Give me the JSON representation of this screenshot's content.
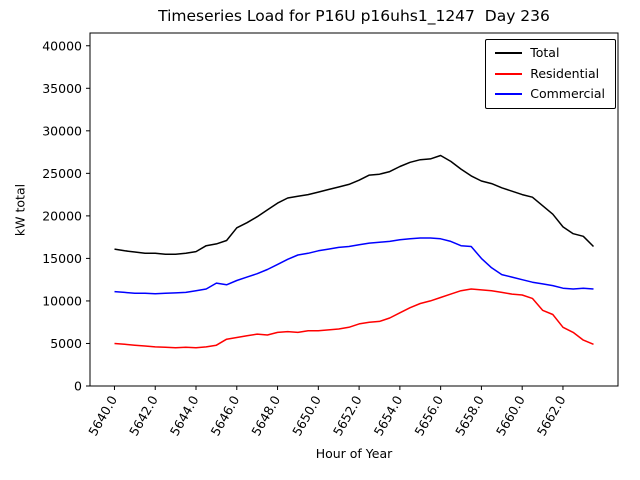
{
  "chart_data": {
    "type": "line",
    "title": "Timeseries Load for P16U p16uhs1_1247  Day 236",
    "xlabel": "Hour of Year",
    "ylabel": "kW total",
    "xlim": [
      5638.8,
      5664.7
    ],
    "ylim": [
      0,
      41500
    ],
    "grid": false,
    "legend_position": "upper right",
    "x_ticks": [
      5640,
      5642,
      5644,
      5646,
      5648,
      5650,
      5652,
      5654,
      5656,
      5658,
      5660,
      5662
    ],
    "x_tick_labels": [
      "5640.0",
      "5642.0",
      "5644.0",
      "5646.0",
      "5648.0",
      "5650.0",
      "5652.0",
      "5654.0",
      "5656.0",
      "5658.0",
      "5660.0",
      "5662.0"
    ],
    "y_ticks": [
      0,
      5000,
      10000,
      15000,
      20000,
      25000,
      30000,
      35000,
      40000
    ],
    "y_tick_labels": [
      "0",
      "5000",
      "10000",
      "15000",
      "20000",
      "25000",
      "30000",
      "35000",
      "40000"
    ],
    "x": [
      5640.0,
      5640.5,
      5641.0,
      5641.5,
      5642.0,
      5642.5,
      5643.0,
      5643.5,
      5644.0,
      5644.5,
      5645.0,
      5645.5,
      5646.0,
      5646.5,
      5647.0,
      5647.5,
      5648.0,
      5648.5,
      5649.0,
      5649.5,
      5650.0,
      5650.5,
      5651.0,
      5651.5,
      5652.0,
      5652.5,
      5653.0,
      5653.5,
      5654.0,
      5654.5,
      5655.0,
      5655.5,
      5656.0,
      5656.5,
      5657.0,
      5657.5,
      5658.0,
      5658.5,
      5659.0,
      5659.5,
      5660.0,
      5660.5,
      5661.0,
      5661.5,
      5662.0,
      5662.5,
      5663.0,
      5663.5
    ],
    "series": [
      {
        "name": "Total",
        "color": "#000000",
        "values": [
          16100,
          15900,
          15750,
          15600,
          15600,
          15500,
          15500,
          15600,
          15800,
          16500,
          16700,
          17100,
          18600,
          19200,
          19900,
          20700,
          21500,
          22100,
          22300,
          22500,
          22800,
          23100,
          23400,
          23700,
          24200,
          24800,
          24900,
          25200,
          25800,
          26300,
          26600,
          26700,
          27100,
          26400,
          25500,
          24700,
          24100,
          23800,
          23300,
          22900,
          22500,
          22200,
          21200,
          20200,
          18700,
          17900,
          17600,
          16400
        ]
      },
      {
        "name": "Residential",
        "color": "#ff0000",
        "values": [
          5000,
          4900,
          4800,
          4700,
          4600,
          4550,
          4500,
          4550,
          4500,
          4600,
          4800,
          5500,
          5700,
          5900,
          6100,
          6000,
          6300,
          6400,
          6300,
          6500,
          6500,
          6600,
          6700,
          6900,
          7300,
          7500,
          7600,
          8000,
          8600,
          9200,
          9700,
          10000,
          10400,
          10800,
          11200,
          11400,
          11300,
          11200,
          11000,
          10800,
          10700,
          10300,
          8900,
          8400,
          6900,
          6300,
          5400,
          4900
        ]
      },
      {
        "name": "Commercial",
        "color": "#0000ff",
        "values": [
          11100,
          11000,
          10900,
          10900,
          10850,
          10900,
          10950,
          11000,
          11200,
          11400,
          12100,
          11900,
          12400,
          12800,
          13200,
          13700,
          14300,
          14900,
          15400,
          15600,
          15900,
          16100,
          16300,
          16400,
          16600,
          16800,
          16900,
          17000,
          17200,
          17300,
          17400,
          17400,
          17300,
          17000,
          16500,
          16400,
          15000,
          13900,
          13100,
          12800,
          12500,
          12200,
          12000,
          11800,
          11500,
          11400,
          11500,
          11400
        ]
      }
    ]
  }
}
